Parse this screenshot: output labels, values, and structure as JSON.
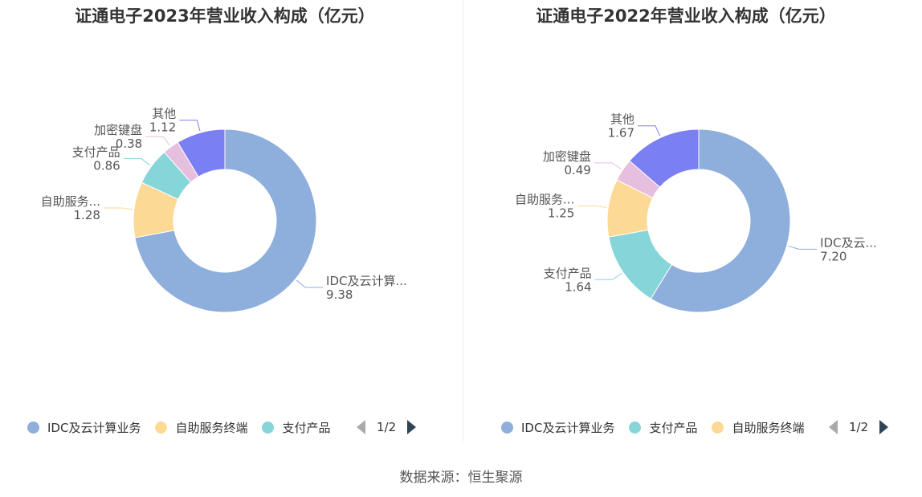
{
  "chart_data": [
    {
      "type": "pie",
      "title": "证通电子2023年营业收入构成（亿元）",
      "categories": [
        "IDC及云计算业务",
        "自助服务终端",
        "支付产品",
        "加密键盘",
        "其他"
      ],
      "labels": [
        "IDC及云计算...",
        "自助服务...",
        "支付产品",
        "加密键盘",
        "其他"
      ],
      "values": [
        9.38,
        1.28,
        0.86,
        0.38,
        1.12
      ],
      "value_labels": [
        "9.38",
        "1.28",
        "0.86",
        "0.38",
        "1.12"
      ],
      "colors": [
        "#8eaedb",
        "#fdd996",
        "#86d6d9",
        "#e7bfde",
        "#7b7ff4"
      ],
      "legend": {
        "items": [
          {
            "name": "IDC及云计算业务",
            "color": "#8eaedb"
          },
          {
            "name": "自助服务终端",
            "color": "#fdd996"
          },
          {
            "name": "支付产品",
            "color": "#86d6d9"
          }
        ],
        "page": "1/2",
        "placement": "bottom"
      }
    },
    {
      "type": "pie",
      "title": "证通电子2022年营业收入构成（亿元）",
      "categories": [
        "IDC及云计算业务",
        "支付产品",
        "自助服务终端",
        "加密键盘",
        "其他"
      ],
      "labels": [
        "IDC及云...",
        "支付产品",
        "自助服务...",
        "加密键盘",
        "其他"
      ],
      "values": [
        7.2,
        1.64,
        1.25,
        0.49,
        1.67
      ],
      "value_labels": [
        "7.20",
        "1.64",
        "1.25",
        "0.49",
        "1.67"
      ],
      "colors": [
        "#8eaedb",
        "#86d6d9",
        "#fdd996",
        "#e7bfde",
        "#7b7ff4"
      ],
      "legend": {
        "items": [
          {
            "name": "IDC及云计算业务",
            "color": "#8eaedb"
          },
          {
            "name": "支付产品",
            "color": "#86d6d9"
          },
          {
            "name": "自助服务终端",
            "color": "#fdd996"
          }
        ],
        "page": "1/2",
        "placement": "bottom"
      }
    }
  ],
  "footer": {
    "source": "数据来源：恒生聚源"
  }
}
